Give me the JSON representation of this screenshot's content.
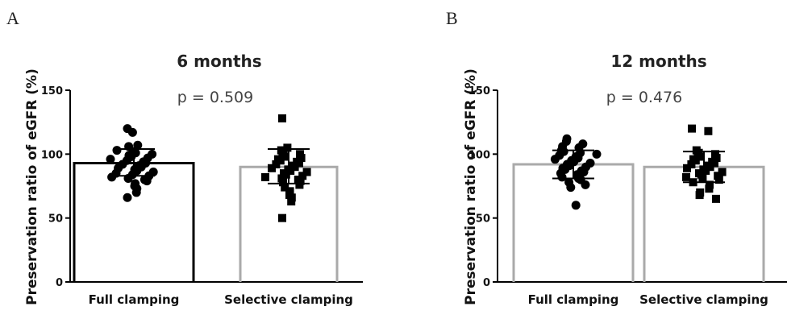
{
  "panels": [
    {
      "letter": "A"
    },
    {
      "letter": "B"
    }
  ],
  "chart_data": [
    {
      "type": "bar",
      "title": "6 months",
      "annotation": "p = 0.509",
      "ylabel": "Preservation ratio of eGFR (%)",
      "xlabel": "",
      "ylim": [
        0,
        150
      ],
      "yticks": [
        0,
        50,
        100,
        150
      ],
      "categories": [
        "Full clamping",
        "Selective clamping"
      ],
      "series": [
        {
          "name": "Full clamping",
          "mean": 93,
          "sd_low": 83,
          "sd_high": 104,
          "bar_color": "#000000",
          "marker": "circle",
          "points": [
            120,
            117,
            107,
            106,
            103,
            102,
            101,
            100,
            99,
            98,
            97,
            96,
            95,
            94,
            93,
            92,
            91,
            90,
            89,
            88,
            87,
            86,
            85,
            84,
            83,
            82,
            81,
            80,
            79,
            77,
            75,
            73,
            70,
            66
          ]
        },
        {
          "name": "Selective clamping",
          "mean": 90,
          "sd_low": 77,
          "sd_high": 104,
          "bar_color": "#aaaaaa",
          "marker": "square",
          "points": [
            128,
            105,
            103,
            101,
            100,
            99,
            98,
            97,
            96,
            95,
            94,
            93,
            92,
            91,
            90,
            89,
            88,
            87,
            86,
            85,
            84,
            83,
            82,
            81,
            80,
            79,
            78,
            76,
            74,
            71,
            68,
            66,
            63,
            50
          ]
        }
      ]
    },
    {
      "type": "bar",
      "title": "12 months",
      "annotation": "p = 0.476",
      "ylabel": "Preservation ratio of eGFR (%)",
      "xlabel": "",
      "ylim": [
        0,
        150
      ],
      "yticks": [
        0,
        50,
        100,
        150
      ],
      "categories": [
        "Full clamping",
        "Selective clamping"
      ],
      "series": [
        {
          "name": "Full clamping",
          "mean": 92,
          "sd_low": 81,
          "sd_high": 103,
          "bar_color": "#aaaaaa",
          "marker": "circle",
          "points": [
            112,
            110,
            108,
            106,
            105,
            103,
            102,
            101,
            100,
            99,
            98,
            97,
            96,
            95,
            94,
            93,
            92,
            91,
            90,
            89,
            88,
            87,
            86,
            85,
            84,
            83,
            82,
            81,
            80,
            78,
            76,
            74,
            60
          ]
        },
        {
          "name": "Selective clamping",
          "mean": 90,
          "sd_low": 78,
          "sd_high": 102,
          "bar_color": "#aaaaaa",
          "marker": "square",
          "points": [
            120,
            118,
            103,
            101,
            100,
            99,
            98,
            97,
            96,
            95,
            94,
            93,
            92,
            91,
            90,
            89,
            88,
            87,
            86,
            85,
            84,
            83,
            82,
            81,
            80,
            78,
            76,
            73,
            70,
            68,
            65
          ]
        }
      ]
    }
  ]
}
